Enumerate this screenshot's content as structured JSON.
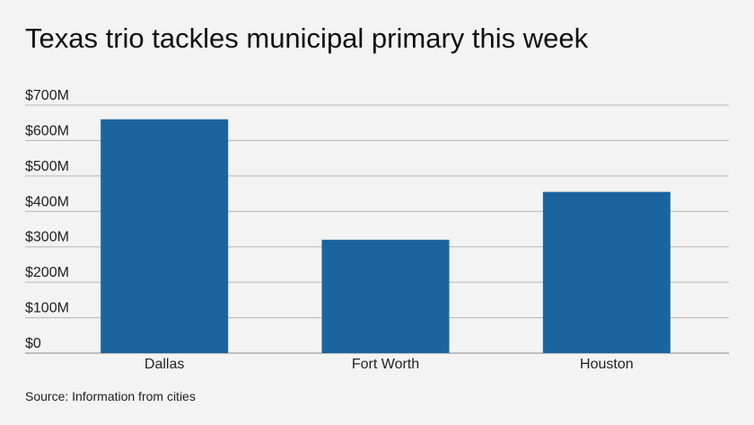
{
  "chart_data": {
    "type": "bar",
    "title": "Texas trio tackles municipal primary this week",
    "categories": [
      "Dallas",
      "Fort Worth",
      "Houston"
    ],
    "values": [
      660,
      320,
      455
    ],
    "color": "#1b659e",
    "ylim": [
      0,
      700
    ],
    "yticks": [
      {
        "value": 0,
        "label": "$0"
      },
      {
        "value": 100,
        "label": "$100M"
      },
      {
        "value": 200,
        "label": "$200M"
      },
      {
        "value": 300,
        "label": "$300M"
      },
      {
        "value": 400,
        "label": "$400M"
      },
      {
        "value": 500,
        "label": "$500M"
      },
      {
        "value": 600,
        "label": "$600M"
      },
      {
        "value": 700,
        "label": "$700M"
      }
    ],
    "grid": true,
    "source": "Source: Information from cities"
  }
}
